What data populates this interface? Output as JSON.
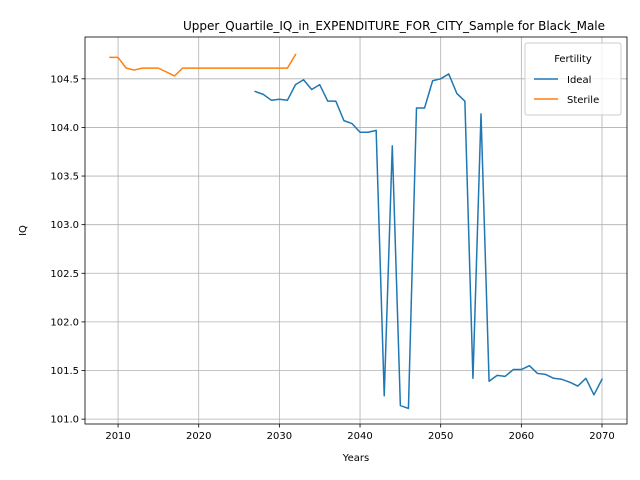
{
  "chart_data": {
    "type": "line",
    "title": "Upper_Quartile_IQ_in_EXPENDITURE_FOR_CITY_Sample for Black_Male",
    "xlabel": "Years",
    "ylabel": "IQ",
    "xlim": [
      2005.9,
      2073.1
    ],
    "ylim": [
      100.95,
      104.93
    ],
    "xticks": [
      2010,
      2020,
      2030,
      2040,
      2050,
      2060,
      2070
    ],
    "yticks": [
      101.0,
      101.5,
      102.0,
      102.5,
      103.0,
      103.5,
      104.0,
      104.5
    ],
    "ytick_labels": [
      "101.0",
      "101.5",
      "102.0",
      "102.5",
      "103.0",
      "103.5",
      "104.0",
      "104.5"
    ],
    "grid": true,
    "legend": {
      "title": "Fertility",
      "placement": "top-right"
    },
    "series": [
      {
        "name": "Ideal",
        "color": "#1f77b4",
        "x": [
          2027,
          2028,
          2029,
          2030,
          2031,
          2032,
          2033,
          2034,
          2035,
          2036,
          2037,
          2038,
          2039,
          2040,
          2041,
          2042,
          2043,
          2044,
          2045,
          2046,
          2047,
          2048,
          2049,
          2050,
          2051,
          2052,
          2053,
          2054,
          2055,
          2056,
          2057,
          2058,
          2059,
          2060,
          2061,
          2062,
          2063,
          2064,
          2065,
          2066,
          2067,
          2068,
          2069,
          2070
        ],
        "values": [
          104.37,
          104.34,
          104.28,
          104.29,
          104.28,
          104.44,
          104.49,
          104.39,
          104.44,
          104.27,
          104.27,
          104.07,
          104.04,
          103.95,
          103.95,
          103.97,
          101.24,
          103.81,
          101.14,
          101.11,
          104.2,
          104.2,
          104.48,
          104.5,
          104.55,
          104.35,
          104.27,
          101.42,
          104.14,
          101.39,
          101.45,
          101.44,
          101.51,
          101.51,
          101.55,
          101.47,
          101.46,
          101.42,
          101.41,
          101.38,
          101.34,
          101.42,
          101.25,
          101.41
        ]
      },
      {
        "name": "Sterile",
        "color": "#ff7f0e",
        "x": [
          2009,
          2010,
          2011,
          2012,
          2013,
          2014,
          2015,
          2016,
          2017,
          2018,
          2019,
          2020,
          2021,
          2022,
          2023,
          2024,
          2025,
          2026,
          2027,
          2028,
          2029,
          2030,
          2031,
          2032
        ],
        "values": [
          104.72,
          104.72,
          104.61,
          104.59,
          104.61,
          104.61,
          104.61,
          104.57,
          104.53,
          104.61,
          104.61,
          104.61,
          104.61,
          104.61,
          104.61,
          104.61,
          104.61,
          104.61,
          104.61,
          104.61,
          104.61,
          104.61,
          104.61,
          104.75
        ]
      }
    ]
  }
}
